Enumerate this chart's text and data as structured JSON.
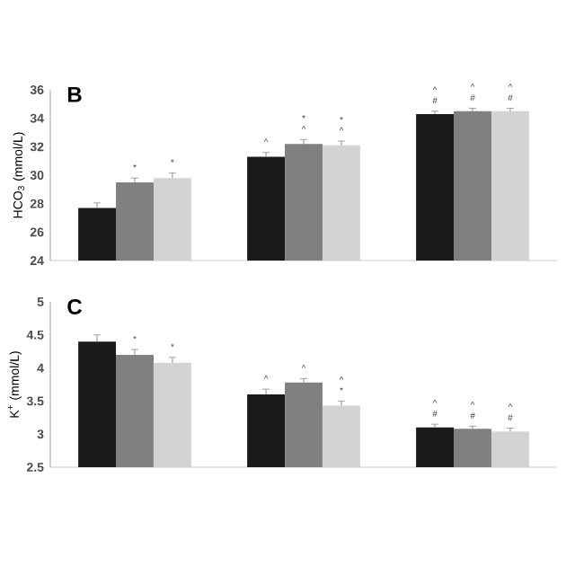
{
  "chart_data": [
    {
      "type": "bar",
      "title": "B",
      "ylabel": "HCO$_{3}$ (mmol/L)",
      "categories": [
        null,
        null,
        null
      ],
      "ylim": [
        24,
        36
      ],
      "yticks": [
        24,
        26,
        28,
        30,
        32,
        34,
        36
      ],
      "tick_labels": "y",
      "series": [
        {
          "color": "#1a1a1a",
          "values": [
            27.7,
            31.3,
            34.3
          ],
          "errors": [
            0.35,
            0.3,
            0.2
          ],
          "value_labels": [
            null,
            "^",
            "^ #"
          ]
        },
        {
          "color": "#808080",
          "values": [
            29.5,
            32.2,
            34.5
          ],
          "errors": [
            0.3,
            0.3,
            0.2
          ],
          "value_labels": [
            "*",
            "* ^",
            "^ #"
          ]
        },
        {
          "color": "#d3d3d3",
          "values": [
            29.8,
            32.1,
            34.5
          ],
          "errors": [
            0.35,
            0.3,
            0.2
          ],
          "value_labels": [
            "*",
            "* ^",
            "^ #"
          ]
        }
      ]
    },
    {
      "type": "bar",
      "title": "C",
      "ylabel": "K$^{+}$ (mmol/L)",
      "categories": [
        null,
        null,
        null
      ],
      "ylim": [
        2.5,
        5
      ],
      "yticks": [
        2.5,
        3,
        3.5,
        4,
        4.5,
        5
      ],
      "tick_labels": "y",
      "series": [
        {
          "color": "#1a1a1a",
          "values": [
            4.4,
            3.6,
            3.1
          ],
          "errors": [
            0.1,
            0.08,
            0.05
          ],
          "value_labels": [
            null,
            "^",
            "^ #"
          ]
        },
        {
          "color": "#808080",
          "values": [
            4.2,
            3.78,
            3.08
          ],
          "errors": [
            0.08,
            0.06,
            0.04
          ],
          "value_labels": [
            "*",
            "^",
            "^ #"
          ]
        },
        {
          "color": "#d3d3d3",
          "values": [
            4.08,
            3.43,
            3.04
          ],
          "errors": [
            0.08,
            0.07,
            0.05
          ],
          "value_labels": [
            "*",
            "^ *",
            "^ #"
          ]
        }
      ]
    }
  ]
}
